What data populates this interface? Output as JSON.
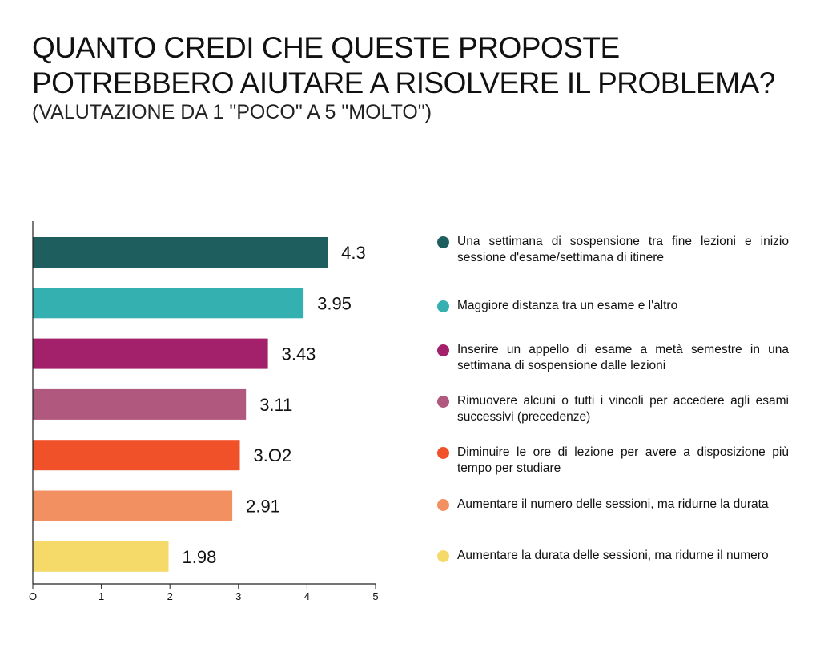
{
  "title": "QUANTO CREDI CHE QUESTE PROPOSTE POTREBBERO AIUTARE A RISOLVERE IL PROBLEMA?",
  "subtitle": "(VALUTAZIONE DA 1 \"POCO\" A 5 \"MOLTO\")",
  "chart_data": {
    "type": "bar",
    "orientation": "horizontal",
    "title": "QUANTO CREDI CHE QUESTE PROPOSTE POTREBBERO AIUTARE A RISOLVERE IL PROBLEMA?",
    "subtitle": "(VALUTAZIONE DA 1 \"POCO\" A 5 \"MOLTO\")",
    "xlabel": "",
    "ylabel": "",
    "xlim": [
      0,
      5
    ],
    "xticks": [
      "O",
      "1",
      "2",
      "3",
      "4",
      "5"
    ],
    "grid": false,
    "legend_position": "right",
    "categories": [
      "Una settimana di sospensione tra fine lezioni e inizio sessione d'esame/settimana di itinere",
      "Maggiore distanza tra un esame e l'altro",
      "Inserire un appello di esame a metà semestre in una settimana di sospensione dalle lezioni",
      "Rimuovere alcuni o tutti i vincoli per accedere agli esami successivi (precedenze)",
      "Diminuire le ore di lezione per avere a disposizione più tempo per studiare",
      "Aumentare il numero delle sessioni, ma ridurne la durata",
      "Aumentare la durata delle sessioni, ma ridurne il numero"
    ],
    "values": [
      4.3,
      3.95,
      3.43,
      3.11,
      3.02,
      2.91,
      1.98
    ],
    "value_labels": [
      "4.3",
      "3.95",
      "3.43",
      "3.11",
      "3.O2",
      "2.91",
      "1.98"
    ],
    "colors": [
      "#1e5e5e",
      "#34b0b0",
      "#a3216b",
      "#b1587f",
      "#f05129",
      "#f39061",
      "#f5da6a"
    ]
  }
}
